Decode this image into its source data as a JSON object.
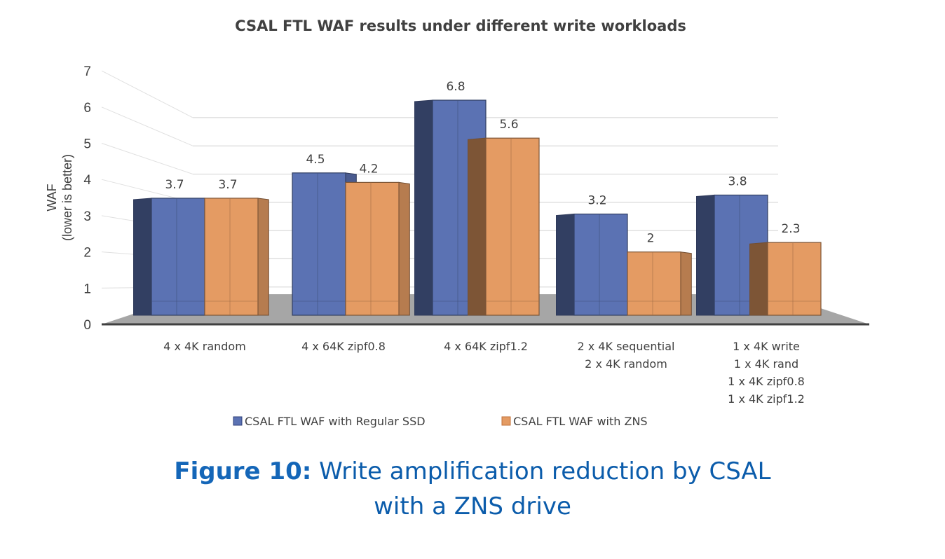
{
  "chart_data": {
    "type": "bar",
    "title": "CSAL FTL WAF results under different write workloads",
    "ylabel_lines": [
      "WAF",
      "(lower is better)"
    ],
    "xlabel": "",
    "ylim": [
      0,
      7
    ],
    "yticks": [
      "0",
      "1",
      "2",
      "3",
      "4",
      "5",
      "6",
      "7"
    ],
    "categories": [
      [
        "4 x 4K random"
      ],
      [
        "4 x 64K zipf0.8"
      ],
      [
        "4 x 64K zipf1.2"
      ],
      [
        "2 x 4K  sequential",
        "2 x 4K random"
      ],
      [
        "1 x 4K write",
        "1 x 4K rand",
        "1 x 4K zipf0.8",
        "1 x 4K zipf1.2"
      ]
    ],
    "series": [
      {
        "name": "CSAL FTL WAF with Regular SSD",
        "values": [
          3.7,
          4.5,
          6.8,
          3.2,
          3.8
        ],
        "labels": [
          "3.7",
          "4.5",
          "6.8",
          "3.2",
          "3.8"
        ],
        "color": "#5b72b3"
      },
      {
        "name": "CSAL FTL WAF with ZNS",
        "values": [
          3.7,
          4.2,
          5.6,
          2,
          2.3
        ],
        "labels": [
          "3.7",
          "4.2",
          "5.6",
          "2",
          "2.3"
        ],
        "color": "#e49b63"
      }
    ],
    "legend_position": "bottom"
  },
  "caption": {
    "bold": "Figure 10:",
    "line1": " Write amplification reduction by CSAL",
    "line2": "with a ZNS drive"
  }
}
